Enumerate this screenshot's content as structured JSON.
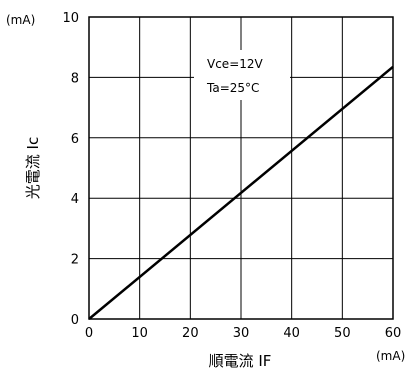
{
  "chart_data": {
    "type": "line",
    "title": "",
    "xlabel": "順電流 IF",
    "ylabel": "光電流 Ic",
    "x_unit": "(mA)",
    "y_unit": "(mA)",
    "xlim": [
      0,
      60
    ],
    "ylim": [
      0,
      10
    ],
    "x_ticks": [
      "0",
      "10",
      "20",
      "30",
      "40",
      "50",
      "60"
    ],
    "y_ticks": [
      "0",
      "2",
      "4",
      "6",
      "8",
      "10"
    ],
    "grid": true,
    "annotations": [
      "Vce=12V",
      "Ta=25°C"
    ],
    "series": [
      {
        "x": [
          0,
          60
        ],
        "y": [
          0,
          8.35
        ]
      }
    ]
  }
}
